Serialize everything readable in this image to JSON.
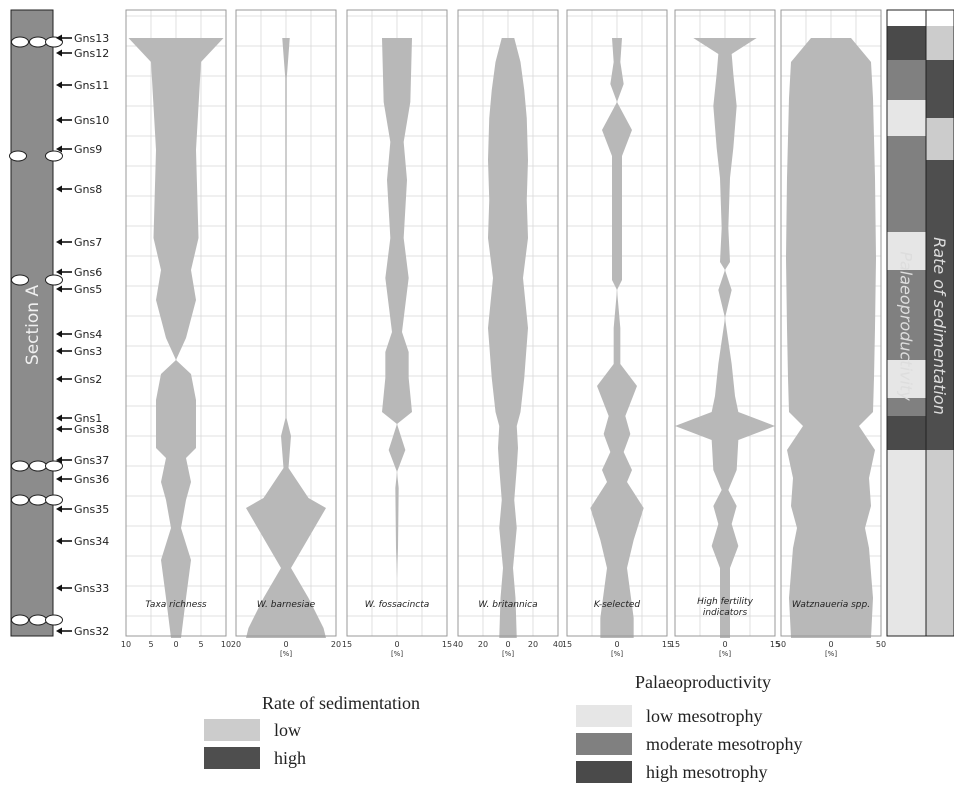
{
  "chart_data": {
    "type": "area",
    "section_label": "Section A",
    "samples": [
      "Gns13",
      "Gns12",
      "Gns11",
      "Gns10",
      "Gns9",
      "Gns8",
      "Gns7",
      "Gns6",
      "Gns5",
      "Gns4",
      "Gns3",
      "Gns2",
      "Gns1",
      "Gns38",
      "Gns37",
      "Gns36",
      "Gns35",
      "Gns34",
      "Gns33",
      "Gns32"
    ],
    "x_unit": "[%]",
    "panels": [
      {
        "title": "Taxa richness",
        "ticks": [
          10,
          5,
          0,
          5,
          10
        ],
        "max": 10,
        "show_unit": false,
        "profile": [
          [
            -9.5,
            0
          ],
          [
            -5,
            24
          ],
          [
            -4,
            112
          ],
          [
            -4.5,
            200
          ],
          [
            -3,
            232
          ],
          [
            -4,
            262
          ],
          [
            -2,
            300
          ],
          [
            0,
            322
          ],
          [
            -3,
            336
          ],
          [
            -4,
            362
          ],
          [
            -4,
            410
          ],
          [
            -2,
            420
          ],
          [
            -3,
            444
          ],
          [
            -2,
            462
          ],
          [
            -1,
            490
          ],
          [
            -3,
            522
          ],
          [
            -2,
            560
          ],
          [
            -1,
            600
          ]
        ]
      },
      {
        "title": "W. barnesiae",
        "ticks": [
          20,
          0,
          20
        ],
        "max": 20,
        "show_unit": true,
        "profile": [
          [
            -1.5,
            0
          ],
          [
            -0.3,
            40
          ],
          [
            -0.2,
            380
          ],
          [
            -2,
            398
          ],
          [
            -1,
            430
          ],
          [
            -9,
            460
          ],
          [
            -16,
            470
          ],
          [
            -9,
            500
          ],
          [
            -2,
            530
          ],
          [
            -9,
            560
          ],
          [
            -15,
            590
          ],
          [
            -16,
            600
          ]
        ]
      },
      {
        "title": "W. fossacincta",
        "ticks": [
          15,
          0,
          15
        ],
        "max": 15,
        "show_unit": true,
        "profile": [
          [
            -4.5,
            0
          ],
          [
            -4,
            64
          ],
          [
            -2,
            104
          ],
          [
            -3,
            142
          ],
          [
            -2,
            200
          ],
          [
            -3.5,
            240
          ],
          [
            -1.5,
            294
          ],
          [
            -3.5,
            314
          ],
          [
            -3.5,
            340
          ],
          [
            -4.5,
            374
          ],
          [
            0,
            386
          ],
          [
            -2.5,
            412
          ],
          [
            0,
            434
          ],
          [
            -0.5,
            450
          ],
          [
            -0.3,
            510
          ],
          [
            0,
            540
          ]
        ]
      },
      {
        "title": "W. britannica",
        "ticks": [
          40,
          20,
          0,
          20,
          40
        ],
        "max": 40,
        "show_unit": true,
        "profile": [
          [
            -5,
            0
          ],
          [
            -10,
            24
          ],
          [
            -13,
            52
          ],
          [
            -15,
            80
          ],
          [
            -16,
            122
          ],
          [
            -15,
            162
          ],
          [
            -16,
            200
          ],
          [
            -12,
            240
          ],
          [
            -16,
            290
          ],
          [
            -13,
            340
          ],
          [
            -10,
            374
          ],
          [
            -7,
            388
          ],
          [
            -8,
            410
          ],
          [
            -7,
            430
          ],
          [
            -5,
            462
          ],
          [
            -7,
            490
          ],
          [
            -4,
            530
          ],
          [
            -6,
            560
          ],
          [
            -7,
            600
          ]
        ]
      },
      {
        "title": "K-selected",
        "ticks": [
          15,
          0,
          15
        ],
        "max": 15,
        "show_unit": true,
        "profile": [
          [
            -1.5,
            0
          ],
          [
            -1,
            24
          ],
          [
            -2,
            46
          ],
          [
            0,
            64
          ],
          [
            -4.5,
            92
          ],
          [
            -1.5,
            118
          ],
          [
            -1.5,
            242
          ],
          [
            0,
            252
          ],
          [
            -1,
            290
          ],
          [
            -1,
            326
          ],
          [
            -6,
            348
          ],
          [
            -2.5,
            378
          ],
          [
            -4,
            396
          ],
          [
            -2,
            414
          ],
          [
            -4.5,
            432
          ],
          [
            -3,
            444
          ],
          [
            -8,
            470
          ],
          [
            -5,
            502
          ],
          [
            -3,
            530
          ],
          [
            -5,
            580
          ],
          [
            -5,
            600
          ]
        ]
      },
      {
        "title": "High fertility indicators",
        "ticks": [
          15,
          0,
          15
        ],
        "max": 15,
        "show_unit": true,
        "profile": [
          [
            -9.5,
            0
          ],
          [
            -2,
            16
          ],
          [
            -2.5,
            36
          ],
          [
            -3.5,
            68
          ],
          [
            -2.5,
            110
          ],
          [
            -1.5,
            140
          ],
          [
            -1,
            190
          ],
          [
            -1.5,
            224
          ],
          [
            0,
            232
          ],
          [
            -2,
            252
          ],
          [
            0,
            280
          ],
          [
            -2,
            326
          ],
          [
            -3,
            358
          ],
          [
            -4,
            374
          ],
          [
            -15,
            388
          ],
          [
            -4,
            402
          ],
          [
            -3.5,
            432
          ],
          [
            -1,
            452
          ],
          [
            -3.5,
            468
          ],
          [
            -2,
            486
          ],
          [
            -4,
            508
          ],
          [
            -1.5,
            530
          ],
          [
            -1.5,
            600
          ]
        ]
      },
      {
        "title": "Watznaueria spp.",
        "ticks": [
          50,
          0,
          50
        ],
        "max": 50,
        "show_unit": true,
        "profile": [
          [
            -20,
            0
          ],
          [
            -40,
            24
          ],
          [
            -42,
            60
          ],
          [
            -44,
            140
          ],
          [
            -45,
            220
          ],
          [
            -44,
            290
          ],
          [
            -43,
            340
          ],
          [
            -42,
            374
          ],
          [
            -28,
            388
          ],
          [
            -44,
            412
          ],
          [
            -38,
            440
          ],
          [
            -40,
            468
          ],
          [
            -34,
            490
          ],
          [
            -38,
            510
          ],
          [
            -42,
            560
          ],
          [
            -40,
            600
          ]
        ]
      }
    ],
    "palaeoproductivity_column": {
      "label": "Palaeoproductivity",
      "bands": [
        [
          "none",
          0,
          16
        ],
        [
          "high",
          16,
          50
        ],
        [
          "moderate",
          50,
          90
        ],
        [
          "low",
          90,
          126
        ],
        [
          "moderate",
          126,
          222
        ],
        [
          "low",
          222,
          260
        ],
        [
          "moderate",
          260,
          350
        ],
        [
          "low",
          350,
          388
        ],
        [
          "moderate",
          388,
          406
        ],
        [
          "high",
          406,
          440
        ],
        [
          "low",
          440,
          626
        ]
      ]
    },
    "sedimentation_column": {
      "label": "Rate of sedimentation",
      "bands": [
        [
          "none",
          0,
          16
        ],
        [
          "low",
          16,
          50
        ],
        [
          "high",
          50,
          108
        ],
        [
          "low",
          108,
          150
        ],
        [
          "high",
          150,
          440
        ],
        [
          "low",
          440,
          626
        ]
      ]
    },
    "legend_sedimentation": {
      "title": "Rate of sedimentation",
      "items": [
        {
          "label": "low",
          "level": "low"
        },
        {
          "label": "high",
          "level": "high"
        }
      ]
    },
    "legend_palaeoproductivity": {
      "title": "Palaeoproductivity",
      "items": [
        {
          "label": "low mesotrophy",
          "level": "low"
        },
        {
          "label": "moderate mesotrophy",
          "level": "moderate"
        },
        {
          "label": "high mesotrophy",
          "level": "high"
        }
      ]
    },
    "colors": {
      "area_fill": "#b8b8b8",
      "section_fill": "#8c8c8c",
      "grid": "#d8d8d8",
      "prod_low": "#e6e6e6",
      "prod_moderate": "#808080",
      "prod_high": "#4a4a4a",
      "sed_low": "#cccccc",
      "sed_high": "#4e4e4e"
    }
  }
}
